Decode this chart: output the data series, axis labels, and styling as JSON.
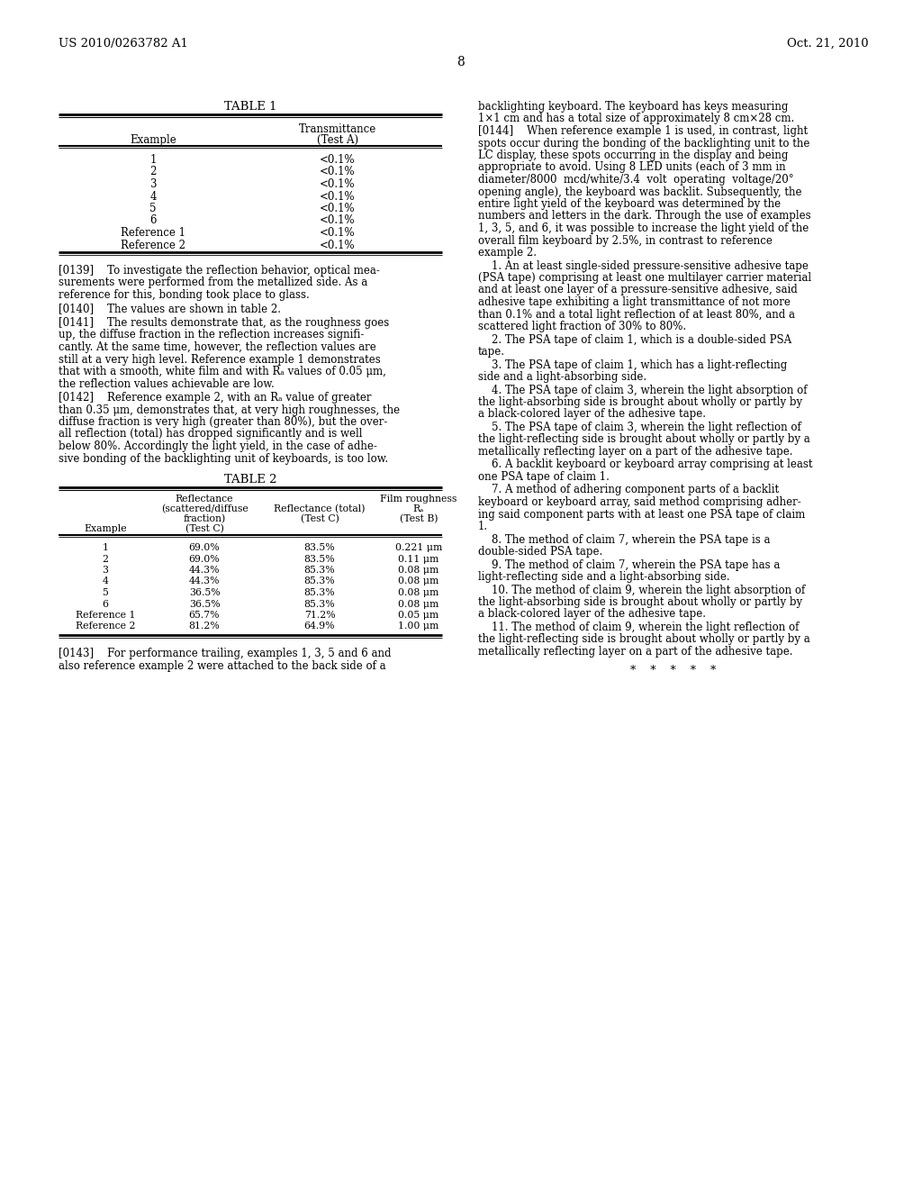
{
  "header_left": "US 2010/0263782 A1",
  "header_right": "Oct. 21, 2010",
  "page_number": "8",
  "background_color": "#ffffff",
  "text_color": "#000000",
  "table1_title": "TABLE 1",
  "table1_col1_header": "Example",
  "table1_col2_header1": "Transmittance",
  "table1_col2_header2": "(Test A)",
  "table1_rows": [
    [
      "1",
      "<0.1%"
    ],
    [
      "2",
      "<0.1%"
    ],
    [
      "3",
      "<0.1%"
    ],
    [
      "4",
      "<0.1%"
    ],
    [
      "5",
      "<0.1%"
    ],
    [
      "6",
      "<0.1%"
    ],
    [
      "Reference 1",
      "<0.1%"
    ],
    [
      "Reference 2",
      "<0.1%"
    ]
  ],
  "table2_title": "TABLE 2",
  "table2_rows": [
    [
      "1",
      "69.0%",
      "83.5%",
      "0.221 μm"
    ],
    [
      "2",
      "69.0%",
      "83.5%",
      "0.11 μm"
    ],
    [
      "3",
      "44.3%",
      "85.3%",
      "0.08 μm"
    ],
    [
      "4",
      "44.3%",
      "85.3%",
      "0.08 μm"
    ],
    [
      "5",
      "36.5%",
      "85.3%",
      "0.08 μm"
    ],
    [
      "6",
      "36.5%",
      "85.3%",
      "0.08 μm"
    ],
    [
      "Reference 1",
      "65.7%",
      "71.2%",
      "0.05 μm"
    ],
    [
      "Reference 2",
      "81.2%",
      "64.9%",
      "1.00 μm"
    ]
  ],
  "left_col": {
    "para139_lines": [
      "[0139]    To investigate the reflection behavior, optical mea-",
      "surements were performed from the metallized side. As a",
      "reference for this, bonding took place to glass."
    ],
    "para140_line": "[0140]    The values are shown in table 2.",
    "para141_lines": [
      "[0141]    The results demonstrate that, as the roughness goes",
      "up, the diffuse fraction in the reflection increases signifi-",
      "cantly. At the same time, however, the reflection values are",
      "still at a very high level. Reference example 1 demonstrates",
      "that with a smooth, white film and with Rₐ values of 0.05 μm,",
      "the reflection values achievable are low."
    ],
    "para142_lines": [
      "[0142]    Reference example 2, with an Rₐ value of greater",
      "than 0.35 μm, demonstrates that, at very high roughnesses, the",
      "diffuse fraction is very high (greater than 80%), but the over-",
      "all reflection (total) has dropped significantly and is well",
      "below 80%. Accordingly the light yield, in the case of adhe-",
      "sive bonding of the backlighting unit of keyboards, is too low."
    ],
    "para143_lines": [
      "[0143]    For performance trailing, examples 1, 3, 5 and 6 and",
      "also reference example 2 were attached to the back side of a"
    ]
  },
  "right_col": [
    [
      "backlighting keyboard. The keyboard has keys measuring",
      "normal",
      false
    ],
    [
      "1×1 cm and has a total size of approximately 8 cm×28 cm.",
      "normal",
      false
    ],
    [
      "[0144]    When reference example 1 is used, in contrast, light",
      "normal",
      false
    ],
    [
      "spots occur during the bonding of the backlighting unit to the",
      "normal",
      false
    ],
    [
      "LC display, these spots occurring in the display and being",
      "normal",
      false
    ],
    [
      "appropriate to avoid. Using 8 LED units (each of 3 mm in",
      "normal",
      false
    ],
    [
      "diameter/8000  mcd/white/3.4  volt  operating  voltage/20°",
      "normal",
      false
    ],
    [
      "opening angle), the keyboard was backlit. Subsequently, the",
      "normal",
      false
    ],
    [
      "entire light yield of the keyboard was determined by the",
      "normal",
      false
    ],
    [
      "numbers and letters in the dark. Through the use of examples",
      "normal",
      false
    ],
    [
      "1, 3, 5, and 6, it was possible to increase the light yield of the",
      "normal",
      false
    ],
    [
      "overall film keyboard by 2.5%, in contrast to reference",
      "normal",
      false
    ],
    [
      "example 2.",
      "normal",
      false
    ],
    [
      "    1. An at least single-sided pressure-sensitive adhesive tape",
      "normal",
      true
    ],
    [
      "(PSA tape) comprising at least one multilayer carrier material",
      "normal",
      false
    ],
    [
      "and at least one layer of a pressure-sensitive adhesive, said",
      "normal",
      false
    ],
    [
      "adhesive tape exhibiting a light transmittance of not more",
      "normal",
      false
    ],
    [
      "than 0.1% and a total light reflection of at least 80%, and a",
      "normal",
      false
    ],
    [
      "scattered light fraction of 30% to 80%.",
      "normal",
      false
    ],
    [
      "    2. The PSA tape of claim 1, which is a double-sided PSA",
      "normal",
      true
    ],
    [
      "tape.",
      "normal",
      false
    ],
    [
      "    3. The PSA tape of claim 1, which has a light-reflecting",
      "normal",
      true
    ],
    [
      "side and a light-absorbing side.",
      "normal",
      false
    ],
    [
      "    4. The PSA tape of claim 3, wherein the light absorption of",
      "normal",
      true
    ],
    [
      "the light-absorbing side is brought about wholly or partly by",
      "normal",
      false
    ],
    [
      "a black-colored layer of the adhesive tape.",
      "normal",
      false
    ],
    [
      "    5. The PSA tape of claim 3, wherein the light reflection of",
      "normal",
      true
    ],
    [
      "the light-reflecting side is brought about wholly or partly by a",
      "normal",
      false
    ],
    [
      "metallically reflecting layer on a part of the adhesive tape.",
      "normal",
      false
    ],
    [
      "    6. A backlit keyboard or keyboard array comprising at least",
      "normal",
      true
    ],
    [
      "one PSA tape of claim 1.",
      "normal",
      false
    ],
    [
      "    7. A method of adhering component parts of a backlit",
      "normal",
      true
    ],
    [
      "keyboard or keyboard array, said method comprising adher-",
      "normal",
      false
    ],
    [
      "ing said component parts with at least one PSA tape of claim",
      "normal",
      false
    ],
    [
      "1.",
      "normal",
      false
    ],
    [
      "    8. The method of claim 7, wherein the PSA tape is a",
      "normal",
      true
    ],
    [
      "double-sided PSA tape.",
      "normal",
      false
    ],
    [
      "    9. The method of claim 7, wherein the PSA tape has a",
      "normal",
      true
    ],
    [
      "light-reflecting side and a light-absorbing side.",
      "normal",
      false
    ],
    [
      "    10. The method of claim 9, wherein the light absorption of",
      "normal",
      true
    ],
    [
      "the light-absorbing side is brought about wholly or partly by",
      "normal",
      false
    ],
    [
      "a black-colored layer of the adhesive tape.",
      "normal",
      false
    ],
    [
      "    11. The method of claim 9, wherein the light reflection of",
      "normal",
      true
    ],
    [
      "the light-reflecting side is brought about wholly or partly by a",
      "normal",
      false
    ],
    [
      "metallically reflecting layer on a part of the adhesive tape.",
      "normal",
      false
    ]
  ],
  "stars": "*    *    *    *    *"
}
